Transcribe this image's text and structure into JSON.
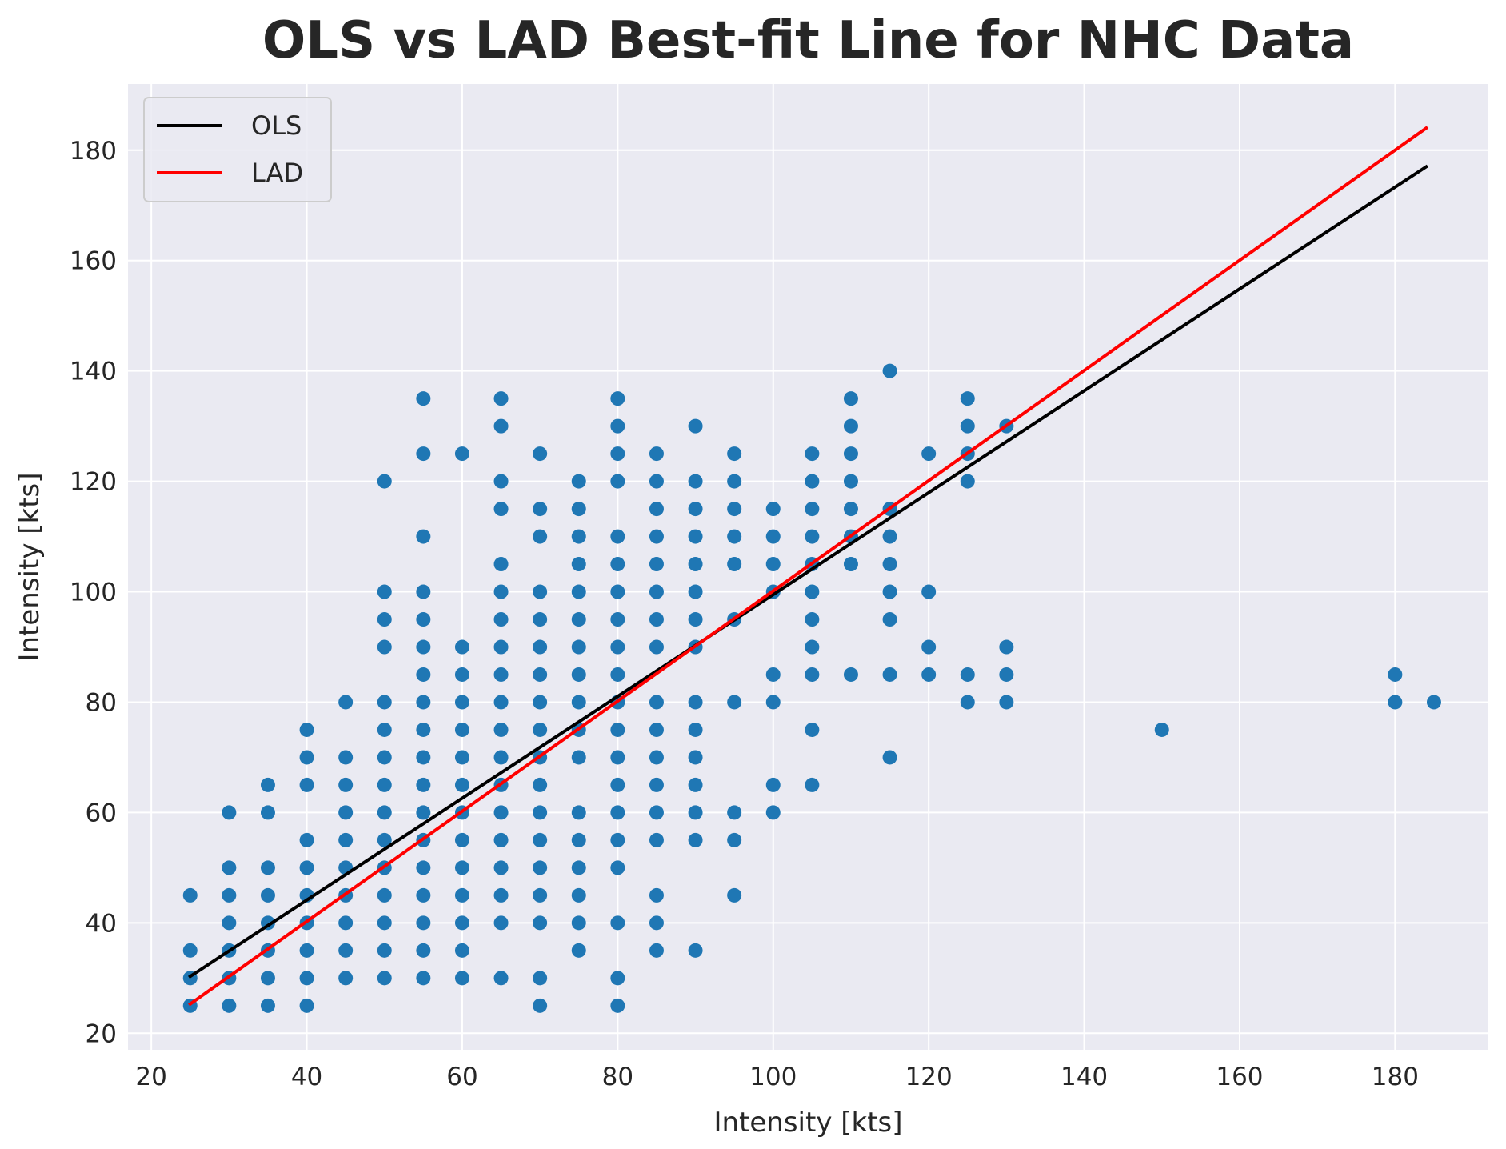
{
  "chart_data": {
    "type": "scatter",
    "title": "OLS vs LAD Best-fit Line for NHC Data",
    "xlabel": "Intensity [kts]",
    "ylabel": "Intensity [kts]",
    "xlim": [
      17,
      192
    ],
    "ylim": [
      17,
      192
    ],
    "xticks": [
      20,
      40,
      60,
      80,
      100,
      120,
      140,
      160,
      180
    ],
    "yticks": [
      20,
      40,
      60,
      80,
      100,
      120,
      140,
      160,
      180
    ],
    "grid": true,
    "legend_position": "top-left",
    "colors": {
      "background": "#eaeaf2",
      "grid": "#ffffff",
      "points": "#1f77b4",
      "ols": "#000000",
      "lad": "#ff0000"
    },
    "scatter_points": [
      [
        25,
        25
      ],
      [
        25,
        30
      ],
      [
        25,
        35
      ],
      [
        25,
        45
      ],
      [
        30,
        25
      ],
      [
        30,
        30
      ],
      [
        30,
        35
      ],
      [
        30,
        40
      ],
      [
        30,
        45
      ],
      [
        30,
        50
      ],
      [
        30,
        60
      ],
      [
        35,
        25
      ],
      [
        35,
        30
      ],
      [
        35,
        35
      ],
      [
        35,
        40
      ],
      [
        35,
        45
      ],
      [
        35,
        50
      ],
      [
        35,
        60
      ],
      [
        35,
        65
      ],
      [
        40,
        25
      ],
      [
        40,
        30
      ],
      [
        40,
        35
      ],
      [
        40,
        40
      ],
      [
        40,
        45
      ],
      [
        40,
        50
      ],
      [
        40,
        55
      ],
      [
        40,
        65
      ],
      [
        40,
        70
      ],
      [
        40,
        75
      ],
      [
        45,
        30
      ],
      [
        45,
        35
      ],
      [
        45,
        40
      ],
      [
        45,
        45
      ],
      [
        45,
        50
      ],
      [
        45,
        55
      ],
      [
        45,
        60
      ],
      [
        45,
        65
      ],
      [
        45,
        70
      ],
      [
        45,
        80
      ],
      [
        50,
        30
      ],
      [
        50,
        35
      ],
      [
        50,
        40
      ],
      [
        50,
        45
      ],
      [
        50,
        50
      ],
      [
        50,
        55
      ],
      [
        50,
        60
      ],
      [
        50,
        65
      ],
      [
        50,
        70
      ],
      [
        50,
        75
      ],
      [
        50,
        80
      ],
      [
        50,
        90
      ],
      [
        50,
        95
      ],
      [
        50,
        100
      ],
      [
        50,
        120
      ],
      [
        55,
        30
      ],
      [
        55,
        35
      ],
      [
        55,
        40
      ],
      [
        55,
        45
      ],
      [
        55,
        50
      ],
      [
        55,
        55
      ],
      [
        55,
        60
      ],
      [
        55,
        65
      ],
      [
        55,
        70
      ],
      [
        55,
        75
      ],
      [
        55,
        80
      ],
      [
        55,
        85
      ],
      [
        55,
        90
      ],
      [
        55,
        95
      ],
      [
        55,
        100
      ],
      [
        55,
        110
      ],
      [
        55,
        125
      ],
      [
        55,
        135
      ],
      [
        60,
        30
      ],
      [
        60,
        35
      ],
      [
        60,
        40
      ],
      [
        60,
        45
      ],
      [
        60,
        50
      ],
      [
        60,
        55
      ],
      [
        60,
        60
      ],
      [
        60,
        65
      ],
      [
        60,
        70
      ],
      [
        60,
        75
      ],
      [
        60,
        80
      ],
      [
        60,
        85
      ],
      [
        60,
        90
      ],
      [
        60,
        125
      ],
      [
        65,
        30
      ],
      [
        65,
        40
      ],
      [
        65,
        45
      ],
      [
        65,
        50
      ],
      [
        65,
        55
      ],
      [
        65,
        60
      ],
      [
        65,
        65
      ],
      [
        65,
        70
      ],
      [
        65,
        75
      ],
      [
        65,
        80
      ],
      [
        65,
        85
      ],
      [
        65,
        90
      ],
      [
        65,
        95
      ],
      [
        65,
        100
      ],
      [
        65,
        105
      ],
      [
        65,
        115
      ],
      [
        65,
        120
      ],
      [
        65,
        130
      ],
      [
        65,
        135
      ],
      [
        70,
        25
      ],
      [
        70,
        30
      ],
      [
        70,
        40
      ],
      [
        70,
        45
      ],
      [
        70,
        50
      ],
      [
        70,
        55
      ],
      [
        70,
        60
      ],
      [
        70,
        65
      ],
      [
        70,
        70
      ],
      [
        70,
        75
      ],
      [
        70,
        80
      ],
      [
        70,
        85
      ],
      [
        70,
        90
      ],
      [
        70,
        95
      ],
      [
        70,
        100
      ],
      [
        70,
        110
      ],
      [
        70,
        115
      ],
      [
        70,
        125
      ],
      [
        75,
        35
      ],
      [
        75,
        40
      ],
      [
        75,
        45
      ],
      [
        75,
        50
      ],
      [
        75,
        55
      ],
      [
        75,
        60
      ],
      [
        75,
        70
      ],
      [
        75,
        75
      ],
      [
        75,
        80
      ],
      [
        75,
        85
      ],
      [
        75,
        90
      ],
      [
        75,
        95
      ],
      [
        75,
        100
      ],
      [
        75,
        105
      ],
      [
        75,
        110
      ],
      [
        75,
        115
      ],
      [
        75,
        120
      ],
      [
        80,
        25
      ],
      [
        80,
        30
      ],
      [
        80,
        40
      ],
      [
        80,
        50
      ],
      [
        80,
        55
      ],
      [
        80,
        60
      ],
      [
        80,
        65
      ],
      [
        80,
        70
      ],
      [
        80,
        75
      ],
      [
        80,
        80
      ],
      [
        80,
        85
      ],
      [
        80,
        90
      ],
      [
        80,
        95
      ],
      [
        80,
        100
      ],
      [
        80,
        105
      ],
      [
        80,
        110
      ],
      [
        80,
        120
      ],
      [
        80,
        125
      ],
      [
        80,
        130
      ],
      [
        80,
        135
      ],
      [
        85,
        35
      ],
      [
        85,
        40
      ],
      [
        85,
        45
      ],
      [
        85,
        55
      ],
      [
        85,
        60
      ],
      [
        85,
        65
      ],
      [
        85,
        70
      ],
      [
        85,
        75
      ],
      [
        85,
        80
      ],
      [
        85,
        90
      ],
      [
        85,
        95
      ],
      [
        85,
        100
      ],
      [
        85,
        105
      ],
      [
        85,
        110
      ],
      [
        85,
        115
      ],
      [
        85,
        120
      ],
      [
        85,
        125
      ],
      [
        90,
        35
      ],
      [
        90,
        55
      ],
      [
        90,
        60
      ],
      [
        90,
        65
      ],
      [
        90,
        70
      ],
      [
        90,
        75
      ],
      [
        90,
        80
      ],
      [
        90,
        90
      ],
      [
        90,
        95
      ],
      [
        90,
        100
      ],
      [
        90,
        105
      ],
      [
        90,
        110
      ],
      [
        90,
        115
      ],
      [
        90,
        120
      ],
      [
        90,
        130
      ],
      [
        95,
        45
      ],
      [
        95,
        55
      ],
      [
        95,
        60
      ],
      [
        95,
        80
      ],
      [
        95,
        95
      ],
      [
        95,
        105
      ],
      [
        95,
        110
      ],
      [
        95,
        115
      ],
      [
        95,
        120
      ],
      [
        95,
        125
      ],
      [
        100,
        60
      ],
      [
        100,
        65
      ],
      [
        100,
        80
      ],
      [
        100,
        85
      ],
      [
        100,
        100
      ],
      [
        100,
        105
      ],
      [
        100,
        110
      ],
      [
        100,
        115
      ],
      [
        105,
        65
      ],
      [
        105,
        75
      ],
      [
        105,
        85
      ],
      [
        105,
        90
      ],
      [
        105,
        95
      ],
      [
        105,
        100
      ],
      [
        105,
        105
      ],
      [
        105,
        110
      ],
      [
        105,
        115
      ],
      [
        105,
        120
      ],
      [
        105,
        125
      ],
      [
        110,
        85
      ],
      [
        110,
        105
      ],
      [
        110,
        110
      ],
      [
        110,
        115
      ],
      [
        110,
        120
      ],
      [
        110,
        125
      ],
      [
        110,
        130
      ],
      [
        110,
        135
      ],
      [
        115,
        70
      ],
      [
        115,
        85
      ],
      [
        115,
        95
      ],
      [
        115,
        100
      ],
      [
        115,
        105
      ],
      [
        115,
        110
      ],
      [
        115,
        115
      ],
      [
        115,
        140
      ],
      [
        120,
        85
      ],
      [
        120,
        90
      ],
      [
        120,
        100
      ],
      [
        120,
        125
      ],
      [
        125,
        80
      ],
      [
        125,
        85
      ],
      [
        125,
        120
      ],
      [
        125,
        125
      ],
      [
        125,
        130
      ],
      [
        125,
        135
      ],
      [
        130,
        80
      ],
      [
        130,
        85
      ],
      [
        130,
        90
      ],
      [
        130,
        130
      ],
      [
        150,
        75
      ],
      [
        180,
        80
      ],
      [
        180,
        85
      ],
      [
        185,
        80
      ]
    ],
    "series": [
      {
        "name": "OLS",
        "x": [
          25,
          184
        ],
        "y": [
          30.3,
          177
        ]
      },
      {
        "name": "LAD",
        "x": [
          25,
          184
        ],
        "y": [
          25.3,
          184
        ]
      }
    ]
  }
}
